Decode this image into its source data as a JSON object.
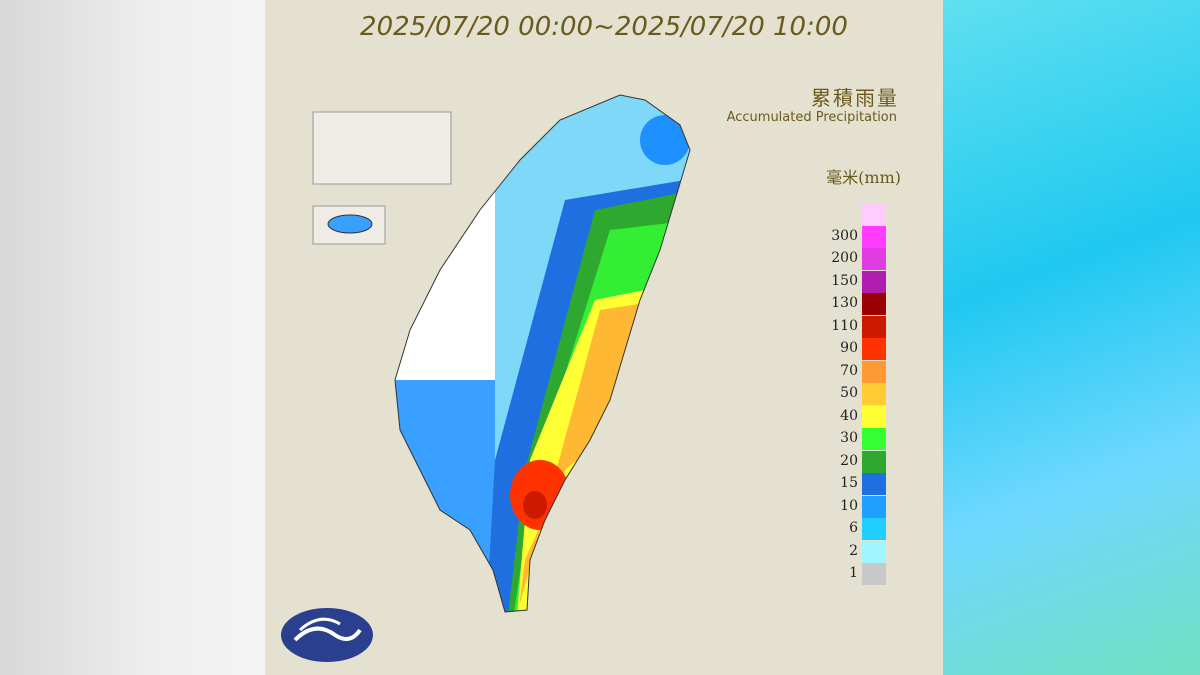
{
  "header": {
    "title": "2025/07/20 00:00~2025/07/20 10:00"
  },
  "legend": {
    "title": "累積雨量",
    "subtitle": "Accumulated Precipitation",
    "unit": "毫米(mm)",
    "top_color": "#ffccff",
    "items": [
      {
        "label": 300,
        "color": "#ff3cff"
      },
      {
        "label": 200,
        "color": "#e03ce0"
      },
      {
        "label": 150,
        "color": "#b01eb0"
      },
      {
        "label": 130,
        "color": "#990000"
      },
      {
        "label": 110,
        "color": "#cc1a00"
      },
      {
        "label": 90,
        "color": "#ff3300"
      },
      {
        "label": 70,
        "color": "#ff9933"
      },
      {
        "label": 50,
        "color": "#ffcc33"
      },
      {
        "label": 40,
        "color": "#ffff33"
      },
      {
        "label": 30,
        "color": "#33ff33"
      },
      {
        "label": 20,
        "color": "#2fa82f"
      },
      {
        "label": 15,
        "color": "#1f6fe0"
      },
      {
        "label": 10,
        "color": "#1f9fff"
      },
      {
        "label": 6,
        "color": "#1fcfff"
      },
      {
        "label": 2,
        "color": "#a0f5ff"
      },
      {
        "label": 1,
        "color": "#c8c8c8"
      }
    ]
  }
}
